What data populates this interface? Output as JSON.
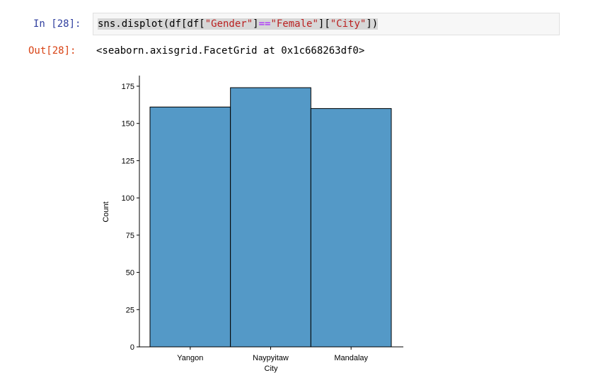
{
  "input_cell": {
    "prompt": "In [28]:",
    "code_parts": [
      {
        "text": "sns.displot(df[df[",
        "cls": "sel"
      },
      {
        "text": "\"Gender\"",
        "cls": "sel str"
      },
      {
        "text": "]",
        "cls": "sel"
      },
      {
        "text": "==",
        "cls": "sel op"
      },
      {
        "text": "\"Female\"",
        "cls": "sel str"
      },
      {
        "text": "][",
        "cls": "sel"
      },
      {
        "text": "\"City\"",
        "cls": "sel str"
      },
      {
        "text": "])",
        "cls": "sel"
      }
    ]
  },
  "output_cell": {
    "prompt": "Out[28]:",
    "text": "<seaborn.axisgrid.FacetGrid at 0x1c668263df0>"
  },
  "chart_data": {
    "type": "bar",
    "categories": [
      "Yangon",
      "Naypyitaw",
      "Mandalay"
    ],
    "values": [
      161,
      174,
      160
    ],
    "xlabel": "City",
    "ylabel": "Count",
    "ylim": [
      0,
      180
    ],
    "yticks": [
      0,
      25,
      50,
      75,
      100,
      125,
      150,
      175
    ],
    "bar_color": "#5499c7",
    "edge_color": "#000000",
    "grid": false
  }
}
